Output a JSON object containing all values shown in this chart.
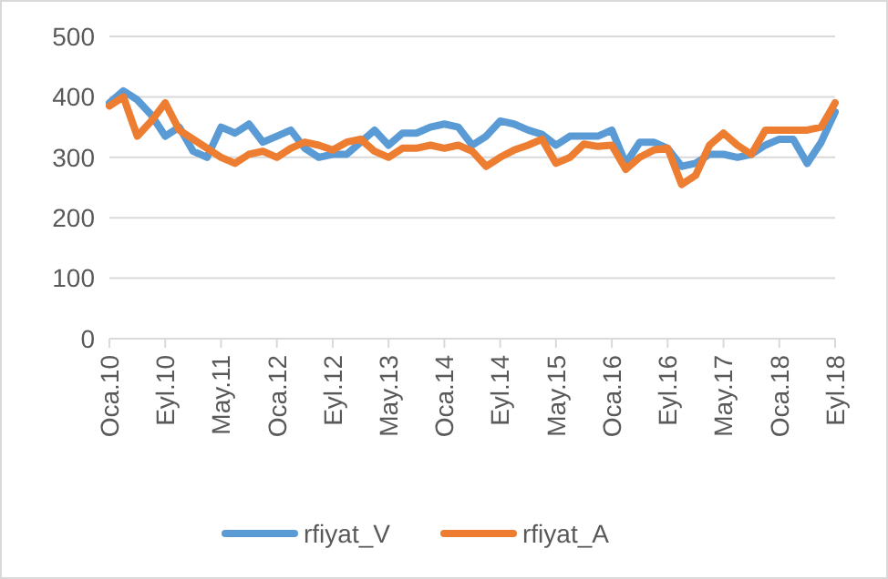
{
  "chart_data": {
    "type": "line",
    "categories": [
      "Oca.10",
      null,
      null,
      null,
      "Eyl.10",
      null,
      null,
      null,
      "May.11",
      null,
      null,
      null,
      "Oca.12",
      null,
      null,
      null,
      "Eyl.12",
      null,
      null,
      null,
      "May.13",
      null,
      null,
      null,
      "Oca.14",
      null,
      null,
      null,
      "Eyl.14",
      null,
      null,
      null,
      "May.15",
      null,
      null,
      null,
      "Oca.16",
      null,
      null,
      null,
      "Eyl.16",
      null,
      null,
      null,
      "May.17",
      null,
      null,
      null,
      "Oca.18",
      null,
      null,
      null,
      "Eyl.18"
    ],
    "series": [
      {
        "name": "rfiyat_V",
        "color": "#5b9bd5",
        "values": [
          390,
          410,
          395,
          370,
          335,
          350,
          310,
          300,
          350,
          340,
          355,
          325,
          335,
          345,
          315,
          300,
          305,
          305,
          325,
          345,
          320,
          340,
          340,
          350,
          355,
          350,
          320,
          335,
          360,
          355,
          345,
          338,
          320,
          335,
          335,
          335,
          345,
          290,
          325,
          325,
          315,
          285,
          290,
          305,
          305,
          300,
          305,
          320,
          330,
          330,
          290,
          325,
          375
        ]
      },
      {
        "name": "rfiyat_A",
        "color": "#ed7d31",
        "values": [
          385,
          400,
          335,
          360,
          390,
          345,
          330,
          315,
          300,
          290,
          305,
          310,
          300,
          315,
          325,
          320,
          312,
          325,
          330,
          310,
          300,
          315,
          315,
          320,
          315,
          320,
          310,
          285,
          300,
          312,
          320,
          330,
          290,
          300,
          322,
          318,
          320,
          280,
          300,
          312,
          315,
          255,
          270,
          320,
          340,
          320,
          305,
          345,
          345,
          345,
          345,
          350,
          390
        ]
      }
    ],
    "ylim": [
      0,
      500
    ],
    "yticks": [
      0,
      100,
      200,
      300,
      400,
      500
    ],
    "grid": "y",
    "legend": "bottom",
    "line_style": "solid",
    "marker": "none"
  }
}
